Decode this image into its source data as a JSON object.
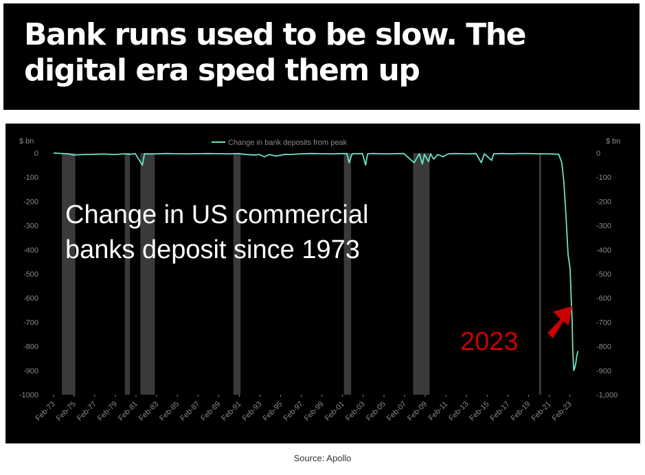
{
  "headline": "Bank runs used to be slow. The digital era sped them up",
  "source": "Source: Apollo",
  "colors": {
    "line": "#6ee3c9",
    "shade": "#3a3a3a",
    "annotation_red": "#cc0000",
    "background": "#000000",
    "axis_text": "#8a8a8a"
  },
  "chart_data": {
    "type": "line",
    "title": "",
    "xlabel": "",
    "ylabel": "$ bn",
    "ylabel_right": "$ bn",
    "ylim": [
      -1000,
      0
    ],
    "y_ticks_left": [
      "0",
      "-100",
      "-200",
      "-300",
      "-400",
      "-500",
      "-600",
      "-700",
      "-800",
      "-900",
      "-1000"
    ],
    "y_ticks_right": [
      "0",
      "-100",
      "-200",
      "-300",
      "-400",
      "-500",
      "-600",
      "-700",
      "-800",
      "-900",
      "-1,000"
    ],
    "x_ticks": [
      "Feb-73",
      "Feb-75",
      "Feb-77",
      "Feb-79",
      "Feb-81",
      "Feb-83",
      "Feb-85",
      "Feb-87",
      "Feb-89",
      "Feb-91",
      "Feb-93",
      "Feb-95",
      "Feb-97",
      "Feb-99",
      "Feb-01",
      "Feb-03",
      "Feb-05",
      "Feb-07",
      "Feb-09",
      "Feb-11",
      "Feb-13",
      "Feb-15",
      "Feb-17",
      "Feb-19",
      "Feb-21",
      "Feb-23"
    ],
    "legend": [
      "Change in bank deposits from peak"
    ],
    "legend_position": "top-center",
    "grid": false,
    "recession_shading": [
      [
        1973.9,
        1975.2
      ],
      [
        1980.0,
        1980.5
      ],
      [
        1981.5,
        1982.9
      ],
      [
        1990.5,
        1991.2
      ],
      [
        2001.2,
        2001.9
      ],
      [
        2007.9,
        2009.5
      ],
      [
        2020.1,
        2020.3
      ]
    ],
    "series": [
      {
        "name": "Change in bank deposits from peak",
        "x": [
          1973.1,
          1974.5,
          1975.0,
          1976.0,
          1977.0,
          1978.0,
          1979.0,
          1980.0,
          1980.6,
          1981.0,
          1981.7,
          1981.9,
          1982.5,
          1984.0,
          1986.0,
          1988.0,
          1990.0,
          1991.0,
          1991.5,
          1992.5,
          1993.0,
          1993.5,
          1994.0,
          1994.6,
          1995.0,
          1995.5,
          1996.0,
          1997.0,
          1998.0,
          2000.0,
          2001.5,
          2001.7,
          2002.0,
          2003.0,
          2003.3,
          2003.5,
          2004.0,
          2005.0,
          2007.0,
          2008.0,
          2008.5,
          2008.8,
          2009.0,
          2009.4,
          2009.6,
          2009.9,
          2010.3,
          2010.8,
          2011.3,
          2012.0,
          2013.0,
          2014.0,
          2014.5,
          2014.8,
          2015.5,
          2015.7,
          2016.5,
          2017.5,
          2018.0,
          2019.0,
          2020.0,
          2021.0,
          2022.0,
          2022.3,
          2022.5,
          2022.7,
          2022.9,
          2023.0,
          2023.1,
          2023.2,
          2023.3,
          2023.35,
          2023.45,
          2023.55,
          2023.65,
          2023.75,
          2023.85
        ],
        "y": [
          0,
          -3,
          -8,
          -6,
          -5,
          -4,
          -6,
          -3,
          -5,
          -2,
          -50,
          -3,
          -4,
          -2,
          -3,
          -2,
          -3,
          -2,
          -5,
          -8,
          -6,
          -15,
          -6,
          -12,
          -10,
          -5,
          -6,
          -3,
          -2,
          -3,
          -2,
          -40,
          -3,
          -2,
          -50,
          -3,
          -2,
          -3,
          -2,
          -40,
          -3,
          -45,
          -5,
          -35,
          -3,
          -25,
          -6,
          -15,
          -3,
          -2,
          -3,
          -2,
          -40,
          -3,
          -30,
          -3,
          -2,
          -3,
          -2,
          -2,
          -3,
          -3,
          -5,
          -40,
          -120,
          -260,
          -420,
          -450,
          -480,
          -600,
          -700,
          -800,
          -900,
          -890,
          -870,
          -840,
          -820
        ]
      }
    ],
    "annotations": [
      {
        "text": "Change in US commercial banks deposit since 1973",
        "lines": [
          "Change in US commercial",
          "banks deposit since 1973"
        ],
        "color": "#ffffff"
      },
      {
        "text": "2023",
        "color": "#cc0000"
      }
    ]
  }
}
